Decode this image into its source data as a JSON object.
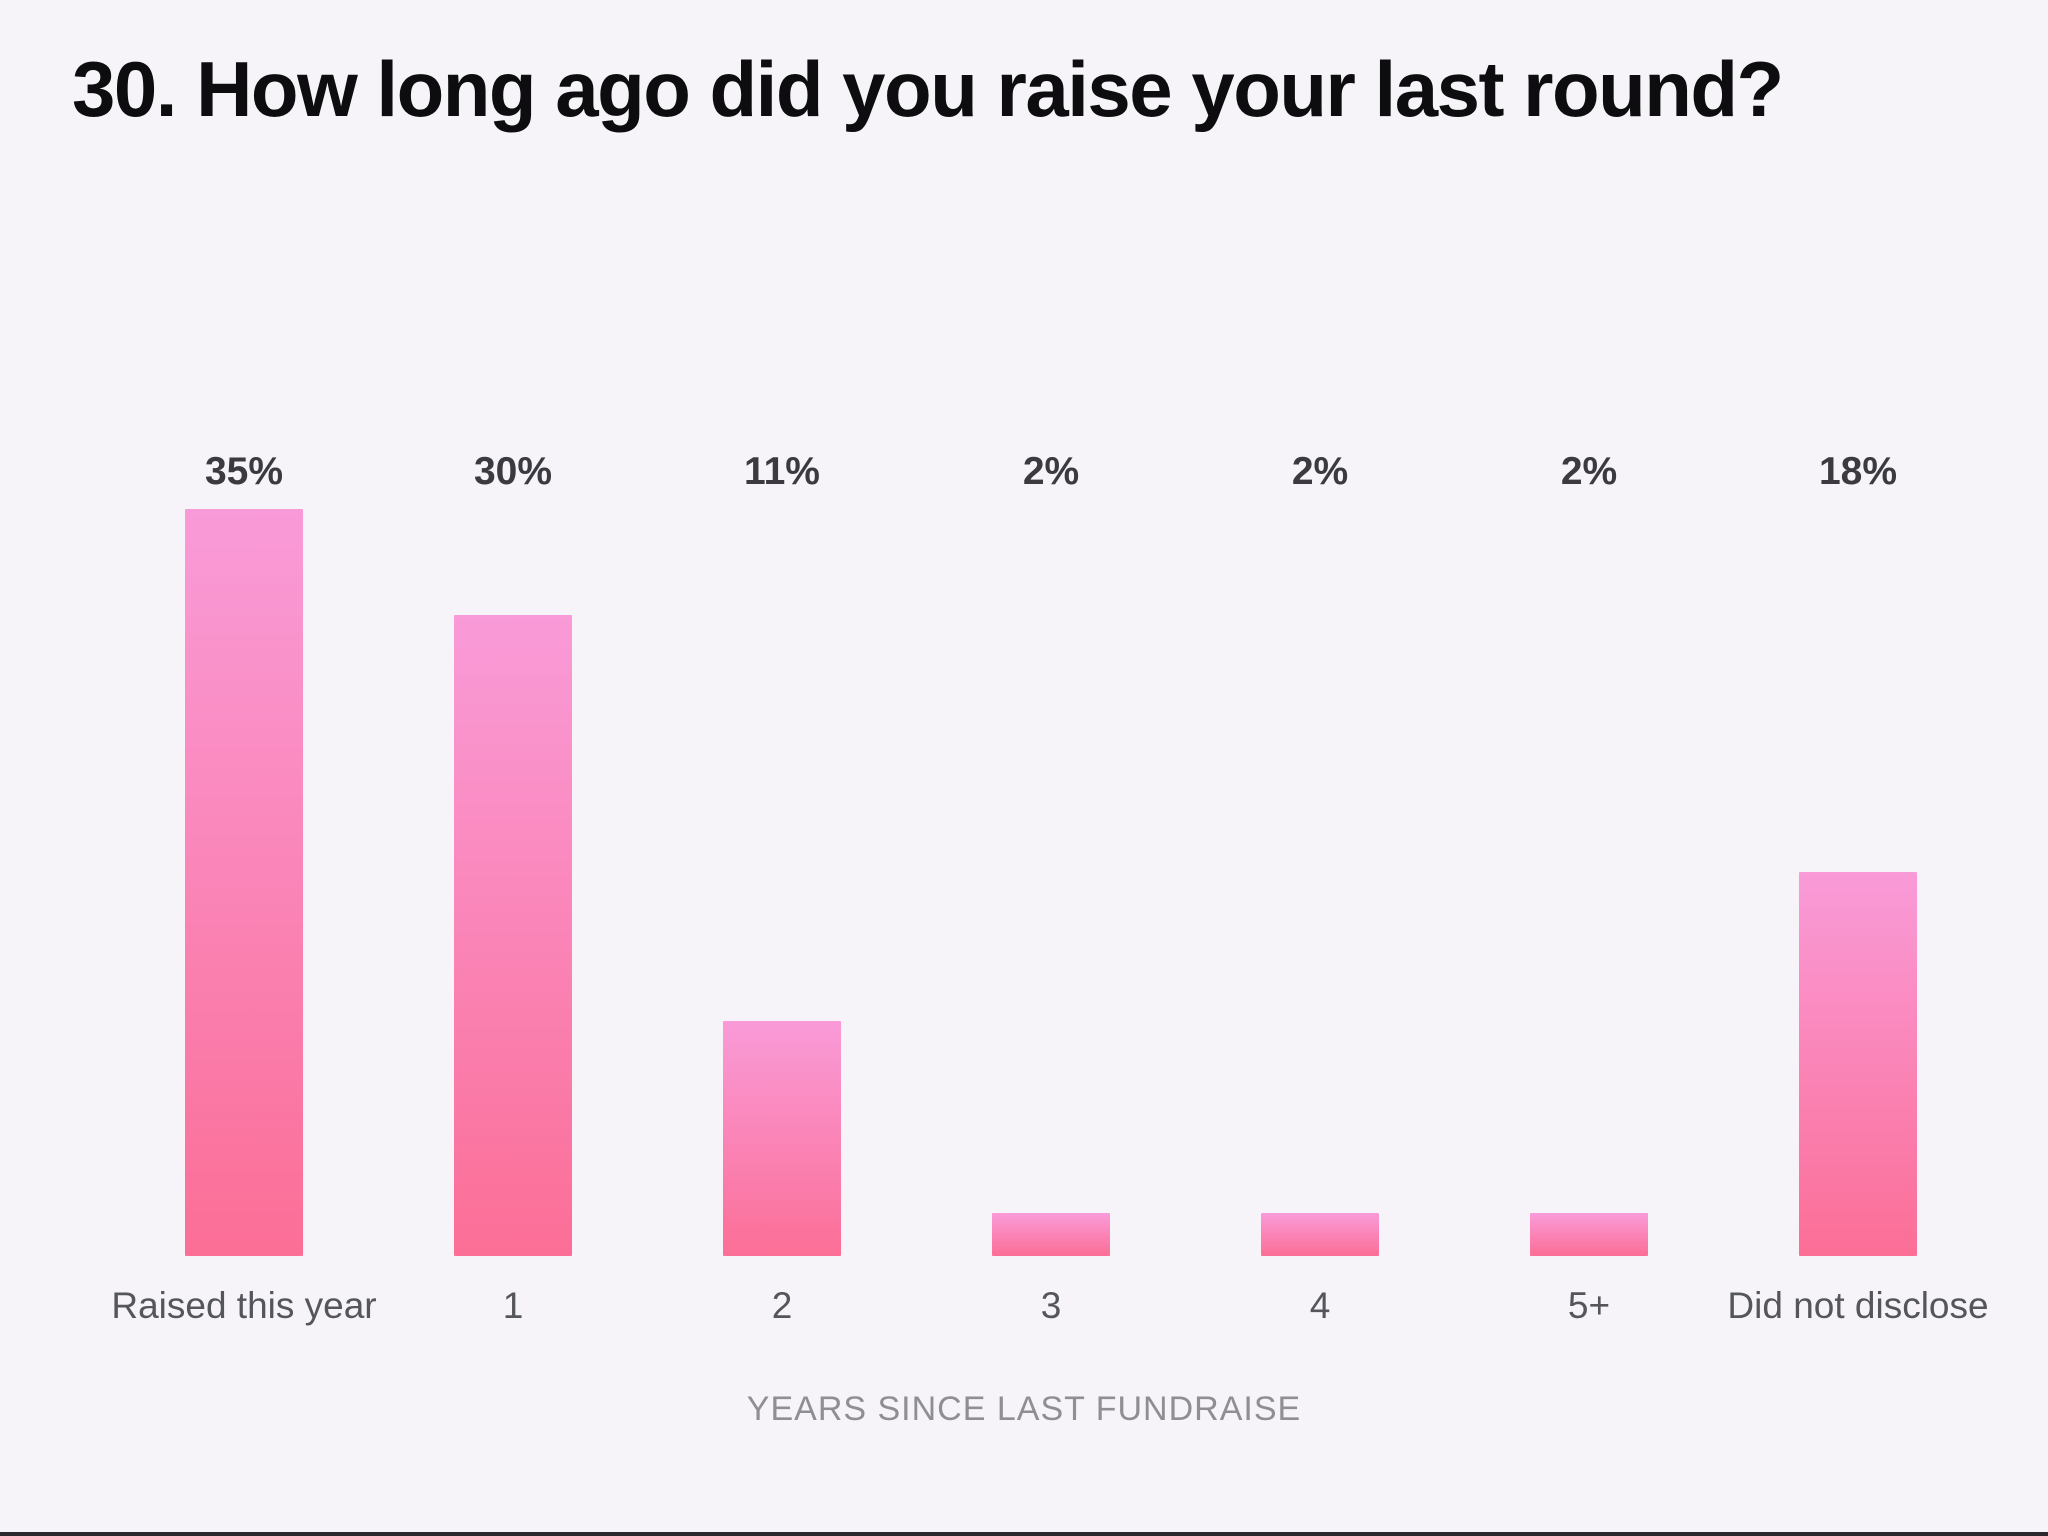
{
  "page": {
    "title": "30. How long ago did you raise your last round?"
  },
  "chart_data": {
    "type": "bar",
    "title": "30. How long ago did you raise your last round?",
    "categories": [
      "Raised this year",
      "1",
      "2",
      "3",
      "4",
      "5+",
      "Did not disclose"
    ],
    "values": [
      35,
      30,
      11,
      2,
      2,
      2,
      18
    ],
    "value_labels": [
      "35%",
      "30%",
      "11%",
      "2%",
      "2%",
      "2%",
      "18%"
    ],
    "xlabel": "YEARS SINCE LAST FUNDRAISE",
    "ylabel": "",
    "ylim": [
      0,
      36
    ],
    "grid": false,
    "legend": false,
    "value_labels_alignment": "single top row",
    "colors": {
      "background": "#f6f4f8",
      "title_text": "#0d0d0f",
      "value_label_text": "#3a3a40",
      "category_label_text": "#55565b",
      "axis_label_text": "#8e8e93",
      "bar_gradient_top": "#f99bd8",
      "bar_gradient_bottom": "#fb6e96"
    }
  }
}
